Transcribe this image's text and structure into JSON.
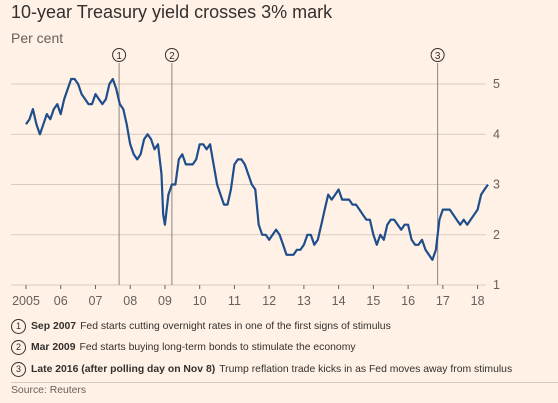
{
  "title": "10-year Treasury yield crosses 3% mark",
  "subtitle": "Per cent",
  "colors": {
    "background": "#FFF1E5",
    "line": "#1E4E8C",
    "grid": "#D8CBC0",
    "text": "#33302E"
  },
  "chart_data": {
    "type": "line",
    "title": "10-year Treasury yield crosses 3% mark",
    "ylabel": "Per cent",
    "xlim": [
      2005,
      2018.3
    ],
    "ylim": [
      1,
      5
    ],
    "y_ticks": [
      "1",
      "2",
      "3",
      "4",
      "5"
    ],
    "y_axis_side": "right",
    "x_ticks": [
      "2005",
      "06",
      "07",
      "08",
      "09",
      "10",
      "11",
      "12",
      "13",
      "14",
      "15",
      "16",
      "17",
      "18"
    ],
    "grid": "horizontal",
    "series": [
      {
        "x": [
          2005.0,
          2005.1,
          2005.2,
          2005.3,
          2005.4,
          2005.5,
          2005.6,
          2005.7,
          2005.8,
          2005.9,
          2006.0,
          2006.1,
          2006.2,
          2006.3,
          2006.4,
          2006.5,
          2006.6,
          2006.7,
          2006.8,
          2006.9,
          2007.0,
          2007.1,
          2007.2,
          2007.3,
          2007.4,
          2007.5,
          2007.6,
          2007.7,
          2007.8,
          2007.9,
          2008.0,
          2008.1,
          2008.2,
          2008.3,
          2008.4,
          2008.5,
          2008.6,
          2008.7,
          2008.8,
          2008.9,
          2008.95,
          2009.0,
          2009.1,
          2009.2,
          2009.3,
          2009.4,
          2009.5,
          2009.6,
          2009.7,
          2009.8,
          2009.9,
          2010.0,
          2010.1,
          2010.2,
          2010.3,
          2010.4,
          2010.5,
          2010.6,
          2010.7,
          2010.8,
          2010.9,
          2011.0,
          2011.1,
          2011.2,
          2011.3,
          2011.4,
          2011.5,
          2011.6,
          2011.7,
          2011.8,
          2011.9,
          2012.0,
          2012.1,
          2012.2,
          2012.3,
          2012.4,
          2012.5,
          2012.6,
          2012.7,
          2012.8,
          2012.9,
          2013.0,
          2013.1,
          2013.2,
          2013.3,
          2013.4,
          2013.5,
          2013.6,
          2013.7,
          2013.8,
          2013.9,
          2014.0,
          2014.1,
          2014.2,
          2014.3,
          2014.4,
          2014.5,
          2014.6,
          2014.7,
          2014.8,
          2014.9,
          2015.0,
          2015.1,
          2015.2,
          2015.3,
          2015.4,
          2015.5,
          2015.6,
          2015.7,
          2015.8,
          2015.9,
          2016.0,
          2016.1,
          2016.2,
          2016.3,
          2016.4,
          2016.5,
          2016.6,
          2016.7,
          2016.8,
          2016.9,
          2017.0,
          2017.1,
          2017.2,
          2017.3,
          2017.4,
          2017.5,
          2017.6,
          2017.7,
          2017.8,
          2017.9,
          2018.0,
          2018.1,
          2018.2,
          2018.3
        ],
        "y": [
          4.2,
          4.3,
          4.5,
          4.2,
          4.0,
          4.2,
          4.4,
          4.3,
          4.5,
          4.6,
          4.4,
          4.7,
          4.9,
          5.1,
          5.1,
          5.0,
          4.8,
          4.7,
          4.6,
          4.6,
          4.8,
          4.7,
          4.6,
          4.7,
          5.0,
          5.1,
          4.9,
          4.6,
          4.5,
          4.2,
          3.8,
          3.6,
          3.5,
          3.6,
          3.9,
          4.0,
          3.9,
          3.7,
          3.8,
          3.2,
          2.4,
          2.2,
          2.8,
          3.0,
          3.0,
          3.5,
          3.6,
          3.4,
          3.4,
          3.4,
          3.5,
          3.8,
          3.8,
          3.7,
          3.8,
          3.4,
          3.0,
          2.8,
          2.6,
          2.6,
          2.9,
          3.4,
          3.5,
          3.5,
          3.4,
          3.2,
          3.0,
          2.9,
          2.2,
          2.0,
          2.0,
          1.9,
          2.0,
          2.1,
          2.0,
          1.8,
          1.6,
          1.6,
          1.6,
          1.7,
          1.7,
          1.8,
          2.0,
          2.0,
          1.8,
          1.9,
          2.2,
          2.5,
          2.8,
          2.7,
          2.8,
          2.9,
          2.7,
          2.7,
          2.7,
          2.6,
          2.6,
          2.5,
          2.4,
          2.3,
          2.3,
          2.0,
          1.8,
          2.0,
          1.9,
          2.2,
          2.3,
          2.3,
          2.2,
          2.1,
          2.2,
          2.2,
          1.9,
          1.8,
          1.8,
          1.9,
          1.7,
          1.6,
          1.5,
          1.7,
          2.3,
          2.5,
          2.5,
          2.5,
          2.4,
          2.3,
          2.2,
          2.3,
          2.2,
          2.3,
          2.4,
          2.5,
          2.8,
          2.9,
          3.0
        ]
      }
    ],
    "annotations": [
      {
        "marker": "1",
        "x": 2007.68
      },
      {
        "marker": "2",
        "x": 2009.2
      },
      {
        "marker": "3",
        "x": 2016.85
      }
    ]
  },
  "notes": [
    {
      "num": "1",
      "label": "Sep 2007",
      "text": "Fed starts cutting overnight rates in one of the first signs of stimulus"
    },
    {
      "num": "2",
      "label": "Mar 2009",
      "text": "Fed starts buying long-term bonds to stimulate the economy"
    },
    {
      "num": "3",
      "label": "Late 2016 (after polling day on Nov 8)",
      "text": "Trump reflation trade kicks in as Fed moves away from stimulus"
    }
  ],
  "source": "Source: Reuters"
}
